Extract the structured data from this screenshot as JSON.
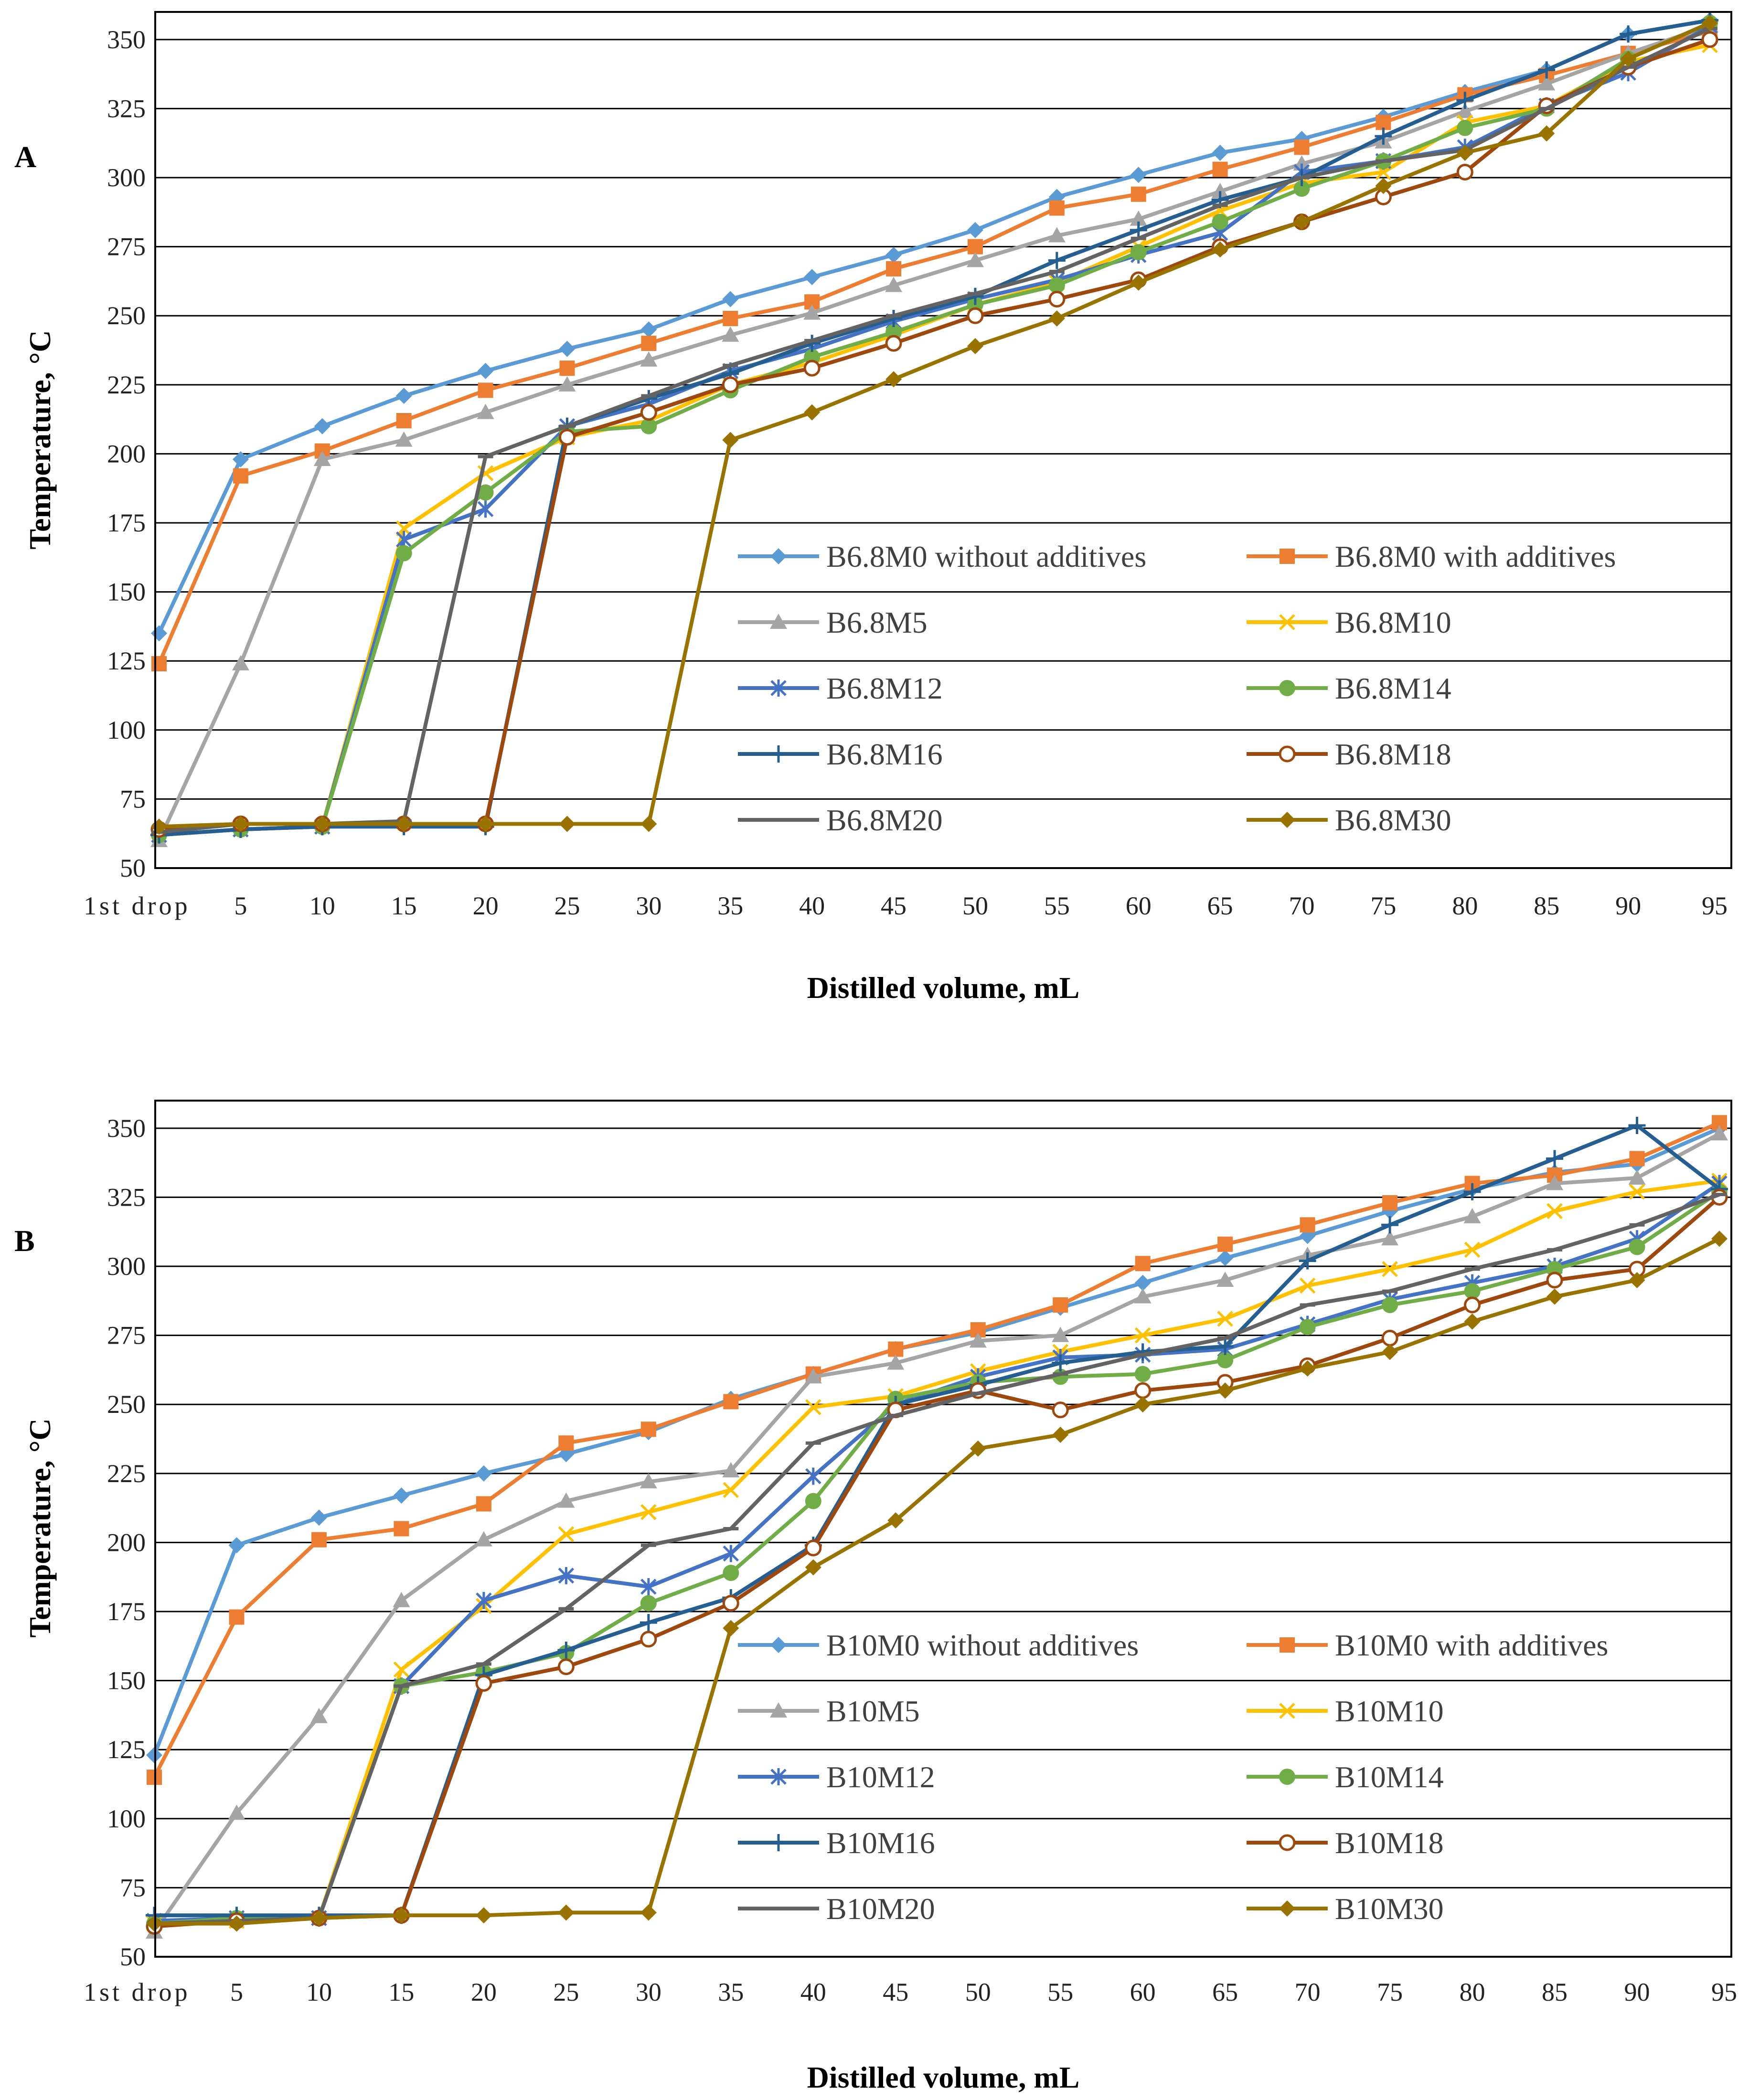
{
  "chart_data": [
    {
      "type": "line",
      "panel_label": "A",
      "xlabel": "Distilled volume, mL",
      "ylabel": "Temperature, °C",
      "categories": [
        "1st drop",
        "5",
        "10",
        "15",
        "20",
        "25",
        "30",
        "35",
        "40",
        "45",
        "50",
        "55",
        "60",
        "65",
        "70",
        "75",
        "80",
        "85",
        "90",
        "95"
      ],
      "y_ticks": [
        "50",
        "75",
        "100",
        "125",
        "150",
        "175",
        "200",
        "225",
        "250",
        "275",
        "300",
        "325",
        "350"
      ],
      "ylim": [
        50,
        360
      ],
      "grid": "horizontal",
      "legend_position": "lower-right",
      "series": [
        {
          "name": "B6.8M0 without additives",
          "color": "#5B9BD5",
          "marker": "diamond",
          "values": [
            135,
            198,
            210,
            221,
            230,
            238,
            245,
            256,
            264,
            272,
            281,
            293,
            301,
            309,
            314,
            322,
            331,
            339,
            352,
            357
          ]
        },
        {
          "name": "B6.8M0 with additives",
          "color": "#ED7D31",
          "marker": "square",
          "values": [
            124,
            192,
            201,
            212,
            223,
            231,
            240,
            249,
            255,
            267,
            275,
            289,
            294,
            303,
            311,
            320,
            330,
            337,
            345,
            353
          ]
        },
        {
          "name": "B6.8M5",
          "color": "#A5A5A5",
          "marker": "triangle",
          "values": [
            60,
            124,
            198,
            205,
            215,
            225,
            234,
            243,
            251,
            261,
            270,
            279,
            285,
            295,
            305,
            313,
            324,
            334,
            345,
            355
          ]
        },
        {
          "name": "B6.8M10",
          "color": "#FFC000",
          "marker": "x",
          "values": [
            62,
            64,
            65,
            173,
            193,
            206,
            212,
            225,
            233,
            243,
            254,
            262,
            275,
            288,
            298,
            302,
            320,
            326,
            342,
            348
          ]
        },
        {
          "name": "B6.8M12",
          "color": "#4472C4",
          "marker": "star",
          "values": [
            62,
            64,
            65,
            169,
            180,
            210,
            218,
            230,
            238,
            248,
            256,
            263,
            272,
            280,
            302,
            306,
            311,
            326,
            338,
            355
          ]
        },
        {
          "name": "B6.8M14",
          "color": "#70AD47",
          "marker": "circle",
          "values": [
            62,
            64,
            65,
            164,
            186,
            208,
            210,
            223,
            235,
            244,
            254,
            261,
            273,
            284,
            296,
            306,
            318,
            325,
            343,
            356
          ]
        },
        {
          "name": "B6.8M16",
          "color": "#255E91",
          "marker": "plus",
          "values": [
            62,
            64,
            65,
            65,
            65,
            210,
            220,
            229,
            240,
            249,
            257,
            270,
            281,
            292,
            300,
            315,
            328,
            339,
            352,
            357
          ]
        },
        {
          "name": "B6.8M18",
          "color": "#9E480E",
          "marker": "open-circle",
          "values": [
            64,
            66,
            66,
            66,
            66,
            206,
            215,
            225,
            231,
            240,
            250,
            256,
            263,
            275,
            284,
            293,
            302,
            326,
            340,
            350
          ]
        },
        {
          "name": "B6.8M20",
          "color": "#636363",
          "marker": "dash",
          "values": [
            63,
            66,
            66,
            67,
            199,
            210,
            221,
            232,
            241,
            250,
            258,
            266,
            278,
            290,
            300,
            306,
            310,
            325,
            340,
            354
          ]
        },
        {
          "name": "B6.8M30",
          "color": "#997300",
          "marker": "diamond",
          "values": [
            65,
            66,
            66,
            66,
            66,
            66,
            66,
            205,
            215,
            227,
            239,
            249,
            262,
            274,
            284,
            297,
            309,
            316,
            343,
            356
          ]
        }
      ]
    },
    {
      "type": "line",
      "panel_label": "B",
      "xlabel": "Distilled volume, mL",
      "ylabel": "Temperature, °C",
      "categories": [
        "1st drop",
        "5",
        "10",
        "15",
        "20",
        "25",
        "30",
        "35",
        "40",
        "45",
        "50",
        "55",
        "60",
        "65",
        "70",
        "75",
        "80",
        "85",
        "90",
        "95"
      ],
      "y_ticks": [
        "50",
        "75",
        "100",
        "125",
        "150",
        "175",
        "200",
        "225",
        "250",
        "275",
        "300",
        "325",
        "350"
      ],
      "ylim": [
        50,
        360
      ],
      "grid": "horizontal",
      "legend_position": "lower-right",
      "series": [
        {
          "name": "B10M0 without additives",
          "color": "#5B9BD5",
          "marker": "diamond",
          "values": [
            123,
            199,
            209,
            217,
            225,
            232,
            240,
            252,
            261,
            270,
            276,
            285,
            294,
            303,
            311,
            320,
            328,
            334,
            337,
            350
          ]
        },
        {
          "name": "B10M0 with additives",
          "color": "#ED7D31",
          "marker": "square",
          "values": [
            115,
            173,
            201,
            205,
            214,
            236,
            241,
            251,
            261,
            270,
            277,
            286,
            301,
            308,
            315,
            323,
            330,
            333,
            339,
            352
          ]
        },
        {
          "name": "B10M5",
          "color": "#A5A5A5",
          "marker": "triangle",
          "values": [
            59,
            102,
            137,
            179,
            201,
            215,
            222,
            226,
            260,
            265,
            273,
            275,
            289,
            295,
            304,
            310,
            318,
            330,
            332,
            348
          ]
        },
        {
          "name": "B10M10",
          "color": "#FFC000",
          "marker": "x",
          "values": [
            62,
            63,
            64,
            154,
            177,
            203,
            211,
            219,
            249,
            253,
            262,
            269,
            275,
            281,
            293,
            299,
            306,
            320,
            327,
            331
          ]
        },
        {
          "name": "B10M12",
          "color": "#4472C4",
          "marker": "star",
          "values": [
            63,
            64,
            64,
            148,
            179,
            188,
            184,
            196,
            224,
            250,
            260,
            267,
            268,
            270,
            279,
            288,
            294,
            300,
            310,
            330
          ]
        },
        {
          "name": "B10M14",
          "color": "#70AD47",
          "marker": "circle",
          "values": [
            62,
            64,
            64,
            148,
            153,
            160,
            178,
            189,
            215,
            252,
            258,
            260,
            261,
            266,
            278,
            286,
            291,
            299,
            307,
            327
          ]
        },
        {
          "name": "B10M16",
          "color": "#255E91",
          "marker": "plus",
          "values": [
            65,
            65,
            65,
            65,
            152,
            161,
            171,
            180,
            199,
            250,
            257,
            265,
            269,
            271,
            302,
            315,
            327,
            339,
            351,
            328
          ]
        },
        {
          "name": "B10M18",
          "color": "#9E480E",
          "marker": "open-circle",
          "values": [
            61,
            63,
            64,
            65,
            149,
            155,
            165,
            178,
            198,
            248,
            255,
            248,
            255,
            258,
            264,
            274,
            286,
            295,
            299,
            325
          ]
        },
        {
          "name": "B10M20",
          "color": "#636363",
          "marker": "dash",
          "values": [
            62,
            63,
            64,
            148,
            156,
            176,
            199,
            205,
            236,
            246,
            254,
            261,
            268,
            274,
            286,
            291,
            299,
            306,
            315,
            326
          ]
        },
        {
          "name": "B10M30",
          "color": "#997300",
          "marker": "diamond",
          "values": [
            62,
            62,
            64,
            65,
            65,
            66,
            66,
            169,
            191,
            208,
            234,
            239,
            250,
            255,
            263,
            269,
            280,
            289,
            295,
            310
          ]
        }
      ]
    }
  ]
}
